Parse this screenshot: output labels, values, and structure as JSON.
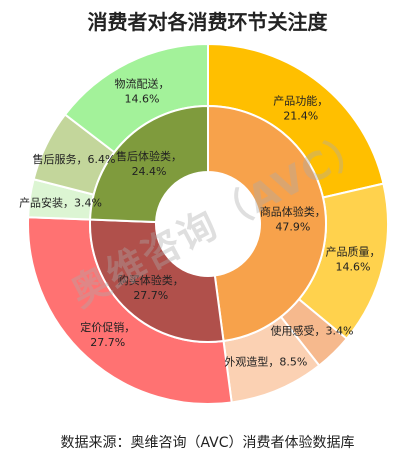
{
  "title": "消费者对各消费环节关注度",
  "watermark": "奥维咨询（AVC）",
  "source": "数据来源：奥维咨询（AVC）消费者体验数据库",
  "chart_data": {
    "type": "pie",
    "subtype": "sunburst",
    "title": "消费者对各消费环节关注度",
    "inner": [
      {
        "name": "商品体验类",
        "value": 47.9,
        "label": "47.9%",
        "color": "#f7a24b"
      },
      {
        "name": "购买体验类",
        "value": 27.7,
        "label": "27.7%",
        "color": "#b0504b"
      },
      {
        "name": "售后体验类",
        "value": 24.4,
        "label": "24.4%",
        "color": "#7f9b3d"
      }
    ],
    "outer": [
      {
        "name": "产品功能",
        "value": 21.4,
        "label": "21.4%",
        "parent": "商品体验类",
        "color": "#ffbf00"
      },
      {
        "name": "产品质量",
        "value": 14.6,
        "label": "14.6%",
        "parent": "商品体验类",
        "color": "#ffd24d"
      },
      {
        "name": "使用感受",
        "value": 3.4,
        "label": "3.4%",
        "parent": "商品体验类",
        "color": "#f6b98d"
      },
      {
        "name": "外观造型",
        "value": 8.5,
        "label": "8.5%",
        "parent": "商品体验类",
        "color": "#fbd1b3"
      },
      {
        "name": "定价促销",
        "value": 27.7,
        "label": "27.7%",
        "parent": "购买体验类",
        "color": "#ff7272"
      },
      {
        "name": "产品安装",
        "value": 3.4,
        "label": "3.4%",
        "parent": "售后体验类",
        "color": "#dcf5d3"
      },
      {
        "name": "售后服务",
        "value": 6.4,
        "label": "6.4%",
        "parent": "售后体验类",
        "color": "#c3d69b"
      },
      {
        "name": "物流配送",
        "value": 14.6,
        "label": "14.6%",
        "parent": "售后体验类",
        "color": "#a3f29a"
      }
    ]
  }
}
